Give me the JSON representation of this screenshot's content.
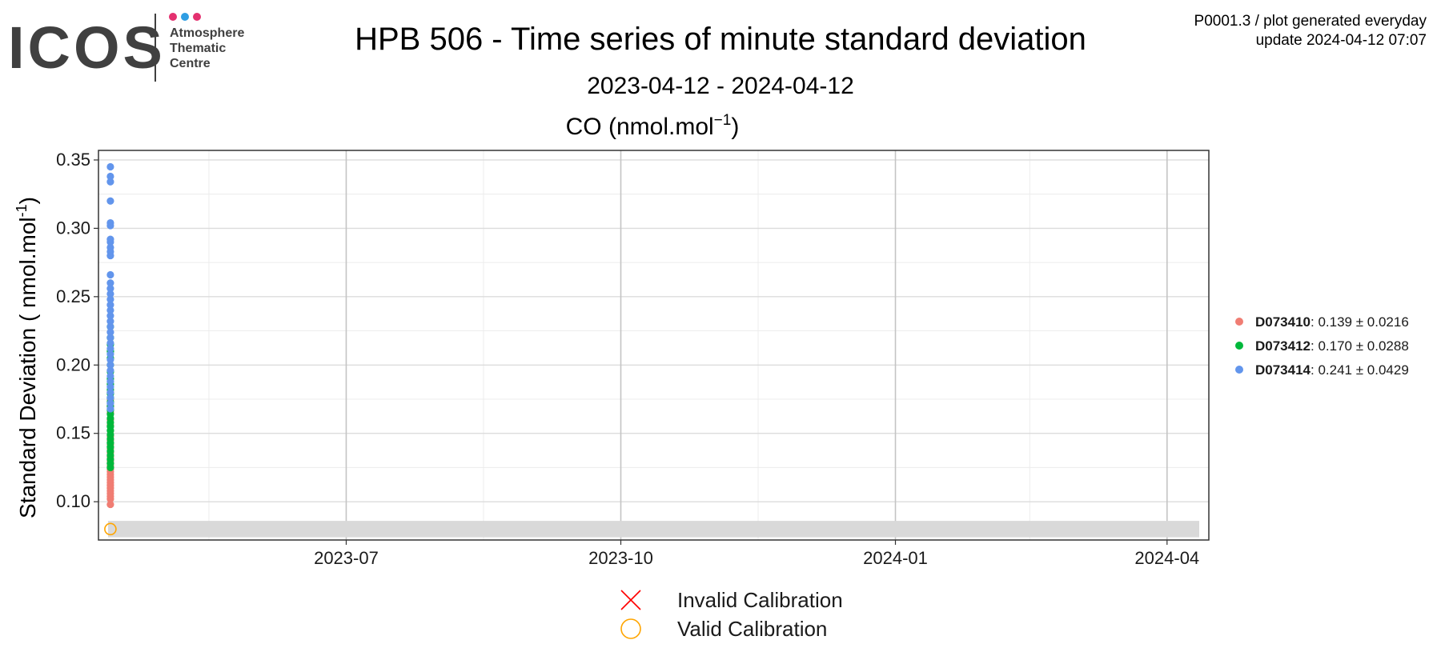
{
  "header": {
    "logo_text": "ICOS",
    "logo_subtitle": [
      "Atmosphere",
      "Thematic",
      "Centre"
    ],
    "logo_dot_colors": [
      "#e4306f",
      "#2f9ee3",
      "#e4306f"
    ],
    "title": "HPB 506 - Time series of minute standard deviation",
    "date_range": "2023-04-12 - 2024-04-12",
    "plot_id": "P0001.3 / plot generated everyday",
    "update_text": "update  2024-04-12 07:07"
  },
  "chart_data": {
    "type": "scatter",
    "title": "CO (nmol.mol",
    "title_sup": "−1",
    "title_end": ")",
    "ylabel": "Standard Deviation ( nmol.mol",
    "ylabel_sup": "-1",
    "ylabel_end": ")",
    "xlabel": "",
    "xlim": [
      "2023-04-09",
      "2024-04-15"
    ],
    "ylim": [
      0.072,
      0.357
    ],
    "x_ticks": [
      {
        "date": "2023-07-01",
        "label": "2023-07"
      },
      {
        "date": "2023-10-01",
        "label": "2023-10"
      },
      {
        "date": "2024-01-01",
        "label": "2024-01"
      },
      {
        "date": "2024-04-01",
        "label": "2024-04"
      }
    ],
    "x_minor_ticks": [
      "2023-05-16",
      "2023-08-16",
      "2023-11-16",
      "2024-02-15"
    ],
    "y_ticks": [
      0.1,
      0.15,
      0.2,
      0.25,
      0.3,
      0.35
    ],
    "y_tick_labels": [
      "0.10",
      "0.15",
      "0.20",
      "0.25",
      "0.30",
      "0.35"
    ],
    "grid": true,
    "reference_band": {
      "ymin": 0.074,
      "ymax": 0.086,
      "color": "#d9d9d9"
    },
    "series": [
      {
        "name": "D073410",
        "stats": ": 0.139 ± 0.0216",
        "color": "#f07d73",
        "x": "2023-04-13",
        "values": [
          0.098,
          0.102,
          0.104,
          0.106,
          0.108,
          0.11,
          0.112,
          0.114,
          0.116,
          0.118,
          0.12,
          0.122,
          0.124,
          0.126,
          0.128,
          0.13,
          0.133,
          0.136,
          0.139,
          0.142,
          0.145,
          0.148,
          0.152,
          0.156,
          0.16,
          0.165,
          0.17,
          0.175,
          0.18
        ]
      },
      {
        "name": "D073412",
        "stats": ": 0.170 ± 0.0288",
        "color": "#00b83b",
        "x": "2023-04-13",
        "values": [
          0.125,
          0.128,
          0.131,
          0.134,
          0.137,
          0.14,
          0.143,
          0.146,
          0.149,
          0.152,
          0.155,
          0.158,
          0.161,
          0.164,
          0.167,
          0.17,
          0.173,
          0.176,
          0.179,
          0.182,
          0.186,
          0.19,
          0.195,
          0.2,
          0.205,
          0.21,
          0.215,
          0.22,
          0.228
        ]
      },
      {
        "name": "D073414",
        "stats": ": 0.241 ± 0.0429",
        "color": "#6295ec",
        "x": "2023-04-13",
        "values": [
          0.168,
          0.172,
          0.176,
          0.18,
          0.184,
          0.188,
          0.192,
          0.196,
          0.2,
          0.204,
          0.208,
          0.212,
          0.216,
          0.22,
          0.224,
          0.228,
          0.232,
          0.236,
          0.24,
          0.244,
          0.248,
          0.252,
          0.256,
          0.26,
          0.266,
          0.28,
          0.283,
          0.286,
          0.29,
          0.292,
          0.302,
          0.304,
          0.32,
          0.334,
          0.338,
          0.345
        ]
      }
    ],
    "calibration_points": [
      {
        "x": "2023-04-13",
        "y": 0.08,
        "status": "valid"
      }
    ],
    "calibration_legend": [
      {
        "label": "Invalid Calibration",
        "color": "#ff0000",
        "symbol": "cross"
      },
      {
        "label": "Valid Calibration",
        "color": "#ffa500",
        "symbol": "circle"
      }
    ]
  }
}
